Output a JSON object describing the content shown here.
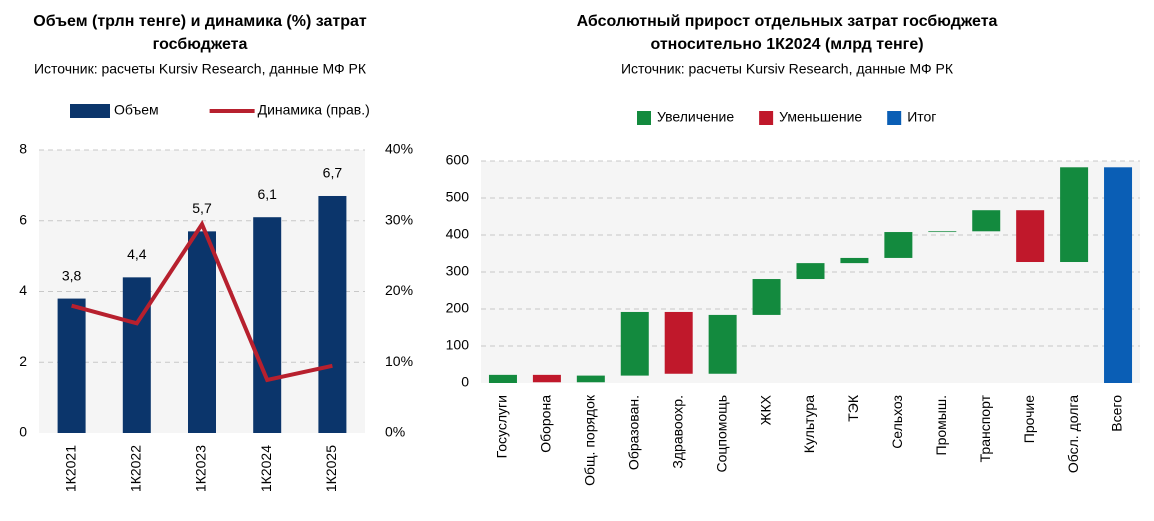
{
  "chart_data": [
    {
      "type": "bar",
      "title": [
        "Объем (трлн тенге) и динамика (%) затрат",
        "госбюджета"
      ],
      "subtitle": "Источник: расчеты Kursiv Research, данные МФ РК",
      "categories": [
        "1К2021",
        "1К2022",
        "1К2023",
        "1К2024",
        "1К2025"
      ],
      "series": [
        {
          "name": "Объем",
          "color": "#0b356b",
          "values": [
            3.8,
            4.4,
            5.7,
            6.1,
            6.7
          ],
          "value_labels": [
            "3,8",
            "4,4",
            "5,7",
            "6,1",
            "6,7"
          ]
        },
        {
          "name": "Динамика (прав.)",
          "color": "#b7202e",
          "axis": "y2",
          "values": [
            18,
            15.5,
            29.5,
            7.5,
            9.5
          ]
        }
      ],
      "ylim": [
        0,
        8
      ],
      "yticks": [
        0,
        2,
        4,
        6,
        8
      ],
      "y2lim": [
        0,
        40
      ],
      "y2ticks": [
        {
          "value": 0,
          "label": "0%"
        },
        {
          "value": 10,
          "label": "10%"
        },
        {
          "value": 20,
          "label": "20%"
        },
        {
          "value": 30,
          "label": "30%"
        },
        {
          "value": 40,
          "label": "40%"
        }
      ],
      "grid": true
    },
    {
      "type": "waterfall",
      "title": [
        "Абсолютный прирост отдельных затрат госбюджета",
        "относительно 1К2024 (млрд тенге)"
      ],
      "subtitle": "Источник: расчеты Kursiv Research, данные МФ РК",
      "categories": [
        "Госуслуги",
        "Оборона",
        "Общ. порядок",
        "Образован.",
        "Здравоохр.",
        "Соцпомощь",
        "ЖКХ",
        "Культура",
        "ТЭК",
        "Сельхоз",
        "Промыш.",
        "Транспорт",
        "Прочие",
        "Обсл. долга",
        "Всего"
      ],
      "series": [
        {
          "name": "Увеличение",
          "color": "#138a3e",
          "values": [
            22,
            null,
            18,
            172,
            null,
            159,
            97,
            43,
            14,
            70,
            2,
            57,
            null,
            256,
            null
          ]
        },
        {
          "name": "Уменьшение",
          "color": "#c0182b",
          "values": [
            null,
            -20,
            null,
            null,
            -167,
            null,
            null,
            null,
            null,
            null,
            null,
            null,
            -140,
            null,
            null
          ]
        },
        {
          "name": "Итог",
          "color": "#0a5eb5",
          "total": true,
          "values": [
            null,
            null,
            null,
            null,
            null,
            null,
            null,
            null,
            null,
            null,
            null,
            null,
            null,
            null,
            583
          ]
        }
      ],
      "ylim": [
        0,
        600
      ],
      "yticks": [
        0,
        100,
        200,
        300,
        400,
        500,
        600
      ],
      "grid": true
    }
  ]
}
